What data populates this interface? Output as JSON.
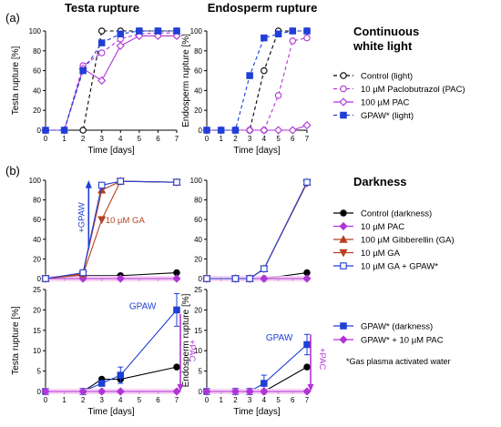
{
  "figure": {
    "panel_a_label": "(a)",
    "panel_b_label": "(b)",
    "col_titles": [
      "Testa rupture",
      "Endosperm rupture"
    ],
    "cond_a": [
      "Continuous",
      "white light"
    ],
    "cond_b": "Darkness",
    "footnote": "*Gas plasma activated water",
    "colors": {
      "black": "#000000",
      "pac": "#b035d6",
      "ga": "#b5401f",
      "gapaw": "#1f3fd6",
      "pink": "#f6c8f3"
    }
  },
  "legend_a": [
    "Control (light)",
    "10 µM Paclobutrazol (PAC)",
    "100 µM PAC",
    "GPAW* (light)"
  ],
  "legend_b1": [
    "Control (darkness)",
    "10 µM PAC",
    "100 µM Gibberellin (GA)",
    "10 µM GA",
    "10 µM GA + GPAW*"
  ],
  "legend_b2": [
    "GPAW* (darkness)",
    "GPAW* + 10 µM PAC"
  ],
  "chart_data": [
    {
      "id": "a_testa",
      "type": "line",
      "xlabel": "Time [days]",
      "ylabel": "Testa rupture [%]",
      "xlim": [
        0,
        7
      ],
      "ylim": [
        0,
        100
      ],
      "xticks": [
        "0",
        "1",
        "2",
        "3",
        "4",
        "5",
        "6",
        "7"
      ],
      "yticks": [
        "0",
        "20",
        "40",
        "60",
        "80",
        "100"
      ],
      "series": [
        {
          "name": "Control (light)",
          "color": "#000000",
          "marker": "circle-open",
          "dash": "4,3",
          "x": [
            0,
            1,
            2,
            3,
            4,
            5,
            6,
            7
          ],
          "y": [
            0,
            0,
            0,
            100,
            100,
            100,
            100,
            100
          ]
        },
        {
          "name": "10 µM Paclobutrazol (PAC)",
          "color": "#b035d6",
          "marker": "circle-open",
          "dash": "4,3",
          "x": [
            0,
            1,
            2,
            3,
            4,
            5,
            6,
            7
          ],
          "y": [
            0,
            0,
            65,
            78,
            92,
            97,
            98,
            98
          ]
        },
        {
          "name": "100 µM PAC",
          "color": "#b035d6",
          "marker": "diamond-open",
          "dash": "",
          "x": [
            0,
            1,
            2,
            3,
            4,
            5,
            6,
            7
          ],
          "y": [
            0,
            0,
            62,
            50,
            85,
            95,
            95,
            95
          ]
        },
        {
          "name": "GPAW* (light)",
          "color": "#1f3fd6",
          "marker": "square",
          "dash": "4,3",
          "x": [
            0,
            1,
            2,
            3,
            4,
            5,
            6,
            7
          ],
          "y": [
            0,
            0,
            60,
            88,
            97,
            100,
            100,
            100
          ]
        }
      ]
    },
    {
      "id": "a_endo",
      "type": "line",
      "xlabel": "Time [days]",
      "ylabel": "Endosperm rupture [%]",
      "xlim": [
        0,
        7
      ],
      "ylim": [
        0,
        100
      ],
      "xticks": [
        "0",
        "1",
        "2",
        "3",
        "4",
        "5",
        "6",
        "7"
      ],
      "yticks": [
        "0",
        "20",
        "40",
        "60",
        "80",
        "100"
      ],
      "series": [
        {
          "name": "Control (light)",
          "color": "#000000",
          "marker": "circle-open",
          "dash": "4,3",
          "x": [
            0,
            1,
            2,
            3,
            4,
            5,
            6,
            7
          ],
          "y": [
            0,
            0,
            0,
            0,
            60,
            100,
            100,
            100
          ]
        },
        {
          "name": "10 µM Paclobutrazol (PAC)",
          "color": "#b035d6",
          "marker": "circle-open",
          "dash": "4,3",
          "x": [
            0,
            1,
            2,
            3,
            4,
            5,
            6,
            7
          ],
          "y": [
            0,
            0,
            0,
            0,
            0,
            35,
            90,
            93
          ]
        },
        {
          "name": "100 µM PAC",
          "color": "#b035d6",
          "marker": "diamond-open",
          "dash": "",
          "x": [
            0,
            1,
            2,
            3,
            4,
            5,
            6,
            7
          ],
          "y": [
            0,
            0,
            0,
            0,
            0,
            0,
            0,
            5
          ]
        },
        {
          "name": "GPAW* (light)",
          "color": "#1f3fd6",
          "marker": "square",
          "dash": "4,3",
          "x": [
            0,
            1,
            2,
            3,
            4,
            5,
            6,
            7
          ],
          "y": [
            0,
            0,
            0,
            55,
            93,
            97,
            100,
            100
          ]
        }
      ]
    },
    {
      "id": "b_testa_top",
      "type": "line",
      "xlabel": "",
      "ylabel": "",
      "xlim": [
        0,
        7
      ],
      "ylim": [
        0,
        100
      ],
      "xticks": [],
      "yticks": [
        "0",
        "20",
        "40",
        "60",
        "80",
        "100"
      ],
      "series": [
        {
          "name": "Control (darkness)",
          "color": "#000000",
          "marker": "circle",
          "x": [
            0,
            2,
            4,
            7
          ],
          "y": [
            0,
            3,
            3,
            6
          ]
        },
        {
          "name": "10 µM PAC",
          "color": "#b035d6",
          "marker": "diamond",
          "x": [
            0,
            2,
            4,
            7
          ],
          "y": [
            0,
            0,
            0,
            0
          ]
        },
        {
          "name": "100 µM Gibberellin (GA)",
          "color": "#b5401f",
          "marker": "triangle-up",
          "x": [
            0,
            2,
            3,
            4,
            7
          ],
          "y": [
            0,
            5,
            90,
            99,
            98
          ]
        },
        {
          "name": "10 µM GA",
          "color": "#b5401f",
          "marker": "triangle-down",
          "x": [
            0,
            2,
            3,
            4,
            7
          ],
          "y": [
            0,
            4,
            60,
            99,
            98
          ]
        },
        {
          "name": "10 µM GA + GPAW*",
          "color": "#1f3fd6",
          "marker": "square-open",
          "x": [
            0,
            2,
            3,
            4,
            7
          ],
          "y": [
            0,
            6,
            95,
            99,
            98
          ]
        }
      ]
    },
    {
      "id": "b_endo_top",
      "type": "line",
      "xlabel": "",
      "ylabel": "",
      "xlim": [
        0,
        7
      ],
      "ylim": [
        0,
        100
      ],
      "xticks": [],
      "yticks": [
        "0",
        "20",
        "40",
        "60",
        "80",
        "100"
      ],
      "series": [
        {
          "name": "Control (darkness)",
          "color": "#000000",
          "marker": "circle",
          "x": [
            0,
            2,
            3,
            4,
            7
          ],
          "y": [
            0,
            0,
            0,
            0,
            6
          ]
        },
        {
          "name": "10 µM PAC",
          "color": "#b035d6",
          "marker": "diamond",
          "x": [
            0,
            2,
            3,
            4,
            7
          ],
          "y": [
            0,
            0,
            0,
            0,
            0
          ]
        },
        {
          "name": "100 µM Gibberellin (GA)",
          "color": "#b5401f",
          "marker": "triangle-up",
          "x": [
            0,
            2,
            3,
            4,
            7
          ],
          "y": [
            0,
            0,
            0,
            10,
            98
          ]
        },
        {
          "name": "10 µM GA",
          "color": "#b5401f",
          "marker": "triangle-down",
          "x": [
            0,
            2,
            3,
            4,
            7
          ],
          "y": [
            0,
            0,
            0,
            10,
            97
          ]
        },
        {
          "name": "10 µM GA + GPAW*",
          "color": "#1f3fd6",
          "marker": "square-open",
          "x": [
            0,
            2,
            3,
            4,
            7
          ],
          "y": [
            0,
            0,
            0,
            10,
            98
          ]
        }
      ]
    },
    {
      "id": "b_testa_bot",
      "type": "line",
      "xlabel": "Time [days]",
      "ylabel": "Testa rupture [%]",
      "xlim": [
        0,
        7
      ],
      "ylim": [
        0,
        25
      ],
      "xticks": [
        "0",
        "1",
        "2",
        "3",
        "4",
        "5",
        "6",
        "7"
      ],
      "yticks": [
        "0",
        "5",
        "10",
        "15",
        "20",
        "25"
      ],
      "series": [
        {
          "name": "Control (darkness)",
          "color": "#000000",
          "marker": "circle",
          "x": [
            0,
            2,
            3,
            4,
            7
          ],
          "y": [
            0,
            0,
            3,
            3,
            6
          ]
        },
        {
          "name": "GPAW* (darkness)",
          "color": "#1f3fd6",
          "marker": "square",
          "x": [
            0,
            2,
            3,
            4,
            7
          ],
          "y": [
            0,
            0,
            2,
            4,
            20
          ],
          "err": [
            0,
            0,
            0.5,
            2,
            4
          ]
        },
        {
          "name": "GPAW* + 10 µM PAC",
          "color": "#b035d6",
          "marker": "diamond",
          "x": [
            0,
            2,
            3,
            4,
            7
          ],
          "y": [
            0,
            0,
            0,
            0,
            0
          ]
        }
      ]
    },
    {
      "id": "b_endo_bot",
      "type": "line",
      "xlabel": "Time [days]",
      "ylabel": "Endosperm rupture [%]",
      "xlim": [
        0,
        7
      ],
      "ylim": [
        0,
        25
      ],
      "xticks": [
        "0",
        "1",
        "2",
        "3",
        "4",
        "5",
        "6",
        "7"
      ],
      "yticks": [
        "0",
        "5",
        "10",
        "15",
        "20",
        "25"
      ],
      "series": [
        {
          "name": "Control (darkness)",
          "color": "#000000",
          "marker": "circle",
          "x": [
            0,
            2,
            3,
            4,
            7
          ],
          "y": [
            0,
            0,
            0,
            0,
            6
          ]
        },
        {
          "name": "GPAW* (darkness)",
          "color": "#1f3fd6",
          "marker": "square",
          "x": [
            0,
            2,
            3,
            4,
            7
          ],
          "y": [
            0,
            0,
            0,
            2,
            11.5
          ],
          "err": [
            0,
            0,
            0,
            2,
            2.5
          ]
        },
        {
          "name": "GPAW* + 10 µM PAC",
          "color": "#b035d6",
          "marker": "diamond",
          "x": [
            0,
            2,
            3,
            4,
            7
          ],
          "y": [
            0,
            0,
            0,
            0,
            0
          ]
        }
      ]
    }
  ],
  "annotations": {
    "gpaw_arrow": "+GPAW",
    "ga_label": "10 µM GA",
    "gpaw_testa": "GPAW",
    "gpaw_endo": "GPAW",
    "pac_testa": "+PAC",
    "pac_endo": "+PAC"
  }
}
